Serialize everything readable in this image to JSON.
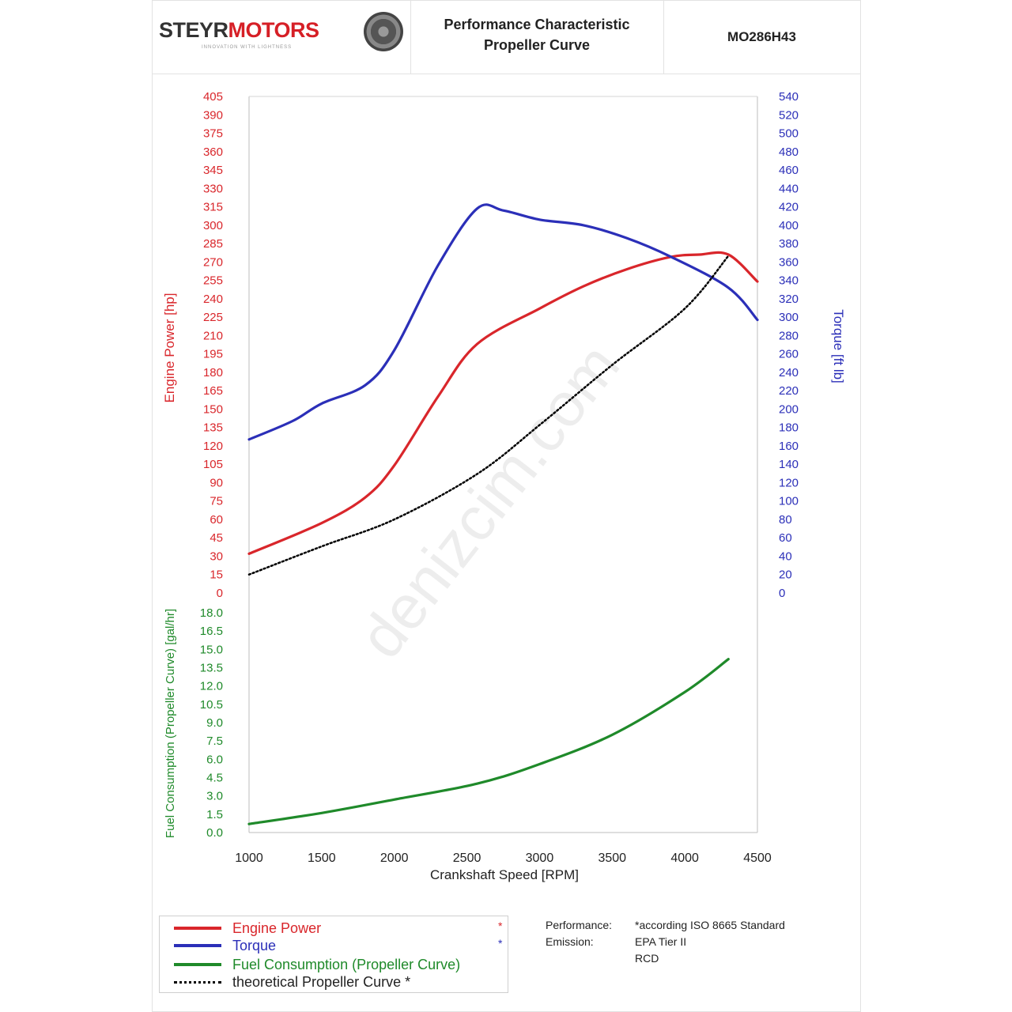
{
  "header": {
    "logo_part1": "STEYR",
    "logo_part2": "MOTORS",
    "logo_tagline": "INNOVATION WITH LIGHTNESS",
    "title_line1": "Performance Characteristic",
    "title_line2": "Propeller Curve",
    "model": "MO286H43"
  },
  "colors": {
    "power": "#d9262b",
    "torque": "#2b2fb8",
    "fuel": "#1f8a2a",
    "propeller": "#000000"
  },
  "chart_data": {
    "type": "line",
    "xlabel": "Crankshaft Speed [RPM]",
    "xlim": [
      1000,
      4500
    ],
    "x_ticks": [
      "1000",
      "1500",
      "2000",
      "2500",
      "3000",
      "3500",
      "4000",
      "4500"
    ],
    "grid": false,
    "watermark": "denizcim.com",
    "axes": {
      "power": {
        "label": "Engine Power [hp]",
        "ylim": [
          0,
          405
        ],
        "ticks": [
          "0",
          "15",
          "30",
          "45",
          "60",
          "75",
          "90",
          "105",
          "120",
          "135",
          "150",
          "165",
          "180",
          "195",
          "210",
          "225",
          "240",
          "255",
          "270",
          "285",
          "300",
          "315",
          "330",
          "345",
          "360",
          "375",
          "390",
          "405"
        ]
      },
      "torque": {
        "label": "Torque [ft lb]",
        "ylim": [
          0,
          540
        ],
        "ticks": [
          "0",
          "20",
          "40",
          "60",
          "80",
          "100",
          "120",
          "140",
          "160",
          "180",
          "200",
          "220",
          "240",
          "260",
          "280",
          "300",
          "320",
          "340",
          "360",
          "380",
          "400",
          "420",
          "440",
          "460",
          "480",
          "500",
          "520",
          "540"
        ]
      },
      "fuel": {
        "label": "Fuel Consumption (Propeller Curve) [gal/hr]",
        "ylim": [
          0,
          18
        ],
        "ticks": [
          "0.0",
          "1.5",
          "3.0",
          "4.5",
          "6.0",
          "7.5",
          "9.0",
          "10.5",
          "12.0",
          "13.5",
          "15.0",
          "16.5",
          "18.0"
        ]
      }
    },
    "series": [
      {
        "name": "Engine Power",
        "axis": "power",
        "x": [
          1000,
          1500,
          1800,
          2000,
          2300,
          2570,
          3000,
          3300,
          3600,
          3900,
          4100,
          4300,
          4500
        ],
        "values": [
          32,
          57,
          78,
          104,
          160,
          203,
          232,
          250,
          264,
          274,
          276,
          276,
          254
        ]
      },
      {
        "name": "Torque",
        "axis": "torque",
        "x": [
          1000,
          1300,
          1500,
          1800,
          2000,
          2300,
          2570,
          2750,
          3000,
          3300,
          3600,
          3900,
          4300,
          4500
        ],
        "values": [
          167,
          187,
          206,
          226,
          264,
          356,
          418,
          416,
          406,
          400,
          386,
          366,
          332,
          297
        ]
      },
      {
        "name": "Fuel Consumption (Propeller Curve)",
        "axis": "fuel",
        "x": [
          1000,
          1500,
          2000,
          2570,
          3000,
          3500,
          4000,
          4300
        ],
        "values": [
          0.7,
          1.6,
          2.7,
          4.0,
          5.6,
          8.0,
          11.5,
          14.2
        ]
      },
      {
        "name": "theoretical Propeller Curve",
        "axis": "power",
        "x": [
          1000,
          1500,
          2000,
          2570,
          3000,
          3500,
          4000,
          4300
        ],
        "values": [
          15,
          38,
          60,
          97,
          137,
          186,
          232,
          275
        ]
      }
    ]
  },
  "legend": {
    "items": [
      {
        "label": "Engine Power",
        "star": "*"
      },
      {
        "label": "Torque",
        "star": "*"
      },
      {
        "label": "Fuel Consumption (Propeller Curve)",
        "star": ""
      },
      {
        "label": "theoretical Propeller Curve *",
        "star": ""
      }
    ]
  },
  "notes": [
    {
      "key": "Performance:",
      "value": "*according ISO 8665 Standard"
    },
    {
      "key": "Emission:",
      "value": "EPA Tier II"
    },
    {
      "key": "",
      "value": "RCD"
    }
  ]
}
